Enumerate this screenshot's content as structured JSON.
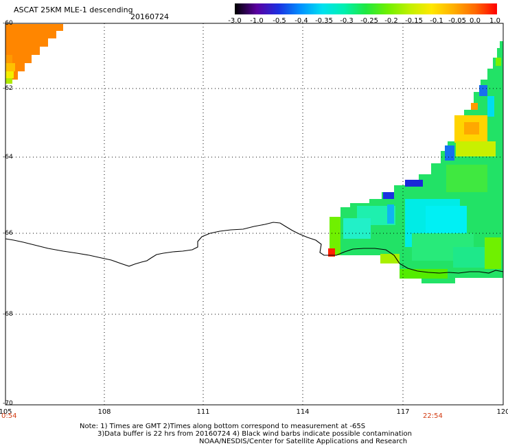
{
  "header": {
    "title": "ASCAT 25KM MLE-1 descending",
    "date": "20160724"
  },
  "colorbar": {
    "labels": [
      "-3.0",
      "-1.0",
      "-0.5",
      "-0.4",
      "-0.35",
      "-0.3",
      "-0.25",
      "-0.2",
      "-0.15",
      "-0.1",
      "-0.05",
      "0.0",
      "1.0"
    ],
    "colors": [
      "#000000",
      "#5a00a0",
      "#1c30e0",
      "#0090ff",
      "#00e0f0",
      "#00f0b0",
      "#20e840",
      "#70f000",
      "#c0f000",
      "#ffe800",
      "#ffb000",
      "#ff6a00",
      "#ff0000"
    ]
  },
  "map": {
    "lat_labels": [
      "-60",
      "-62",
      "-64",
      "-66",
      "-68",
      "-70"
    ],
    "lon_labels": [
      "105",
      "108",
      "111",
      "114",
      "117",
      "120"
    ],
    "times": [
      "0:54",
      "22:54"
    ],
    "style": {
      "coast_color": "#000000",
      "grid_color": "#000000",
      "time_color": "#d23a10"
    }
  },
  "notes": [
    "Note: 1) Times are GMT 2)Times along bottom correspond to measurement at -65S",
    "3)Data buffer is 22 hrs from 20160724 4) Black wind barbs indicate possible contamination",
    "NOAA/NESDIS/Center for Satellite Applications and Research"
  ]
}
